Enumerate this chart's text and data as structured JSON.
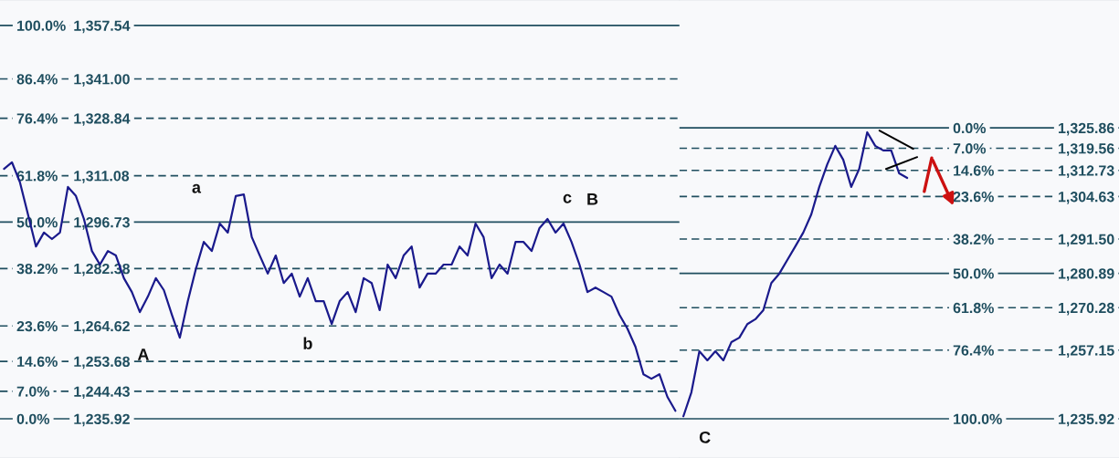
{
  "chart_data": [
    {
      "type": "line",
      "ylim": [
        1223.8,
        1365.4
      ],
      "y2lim": [
        -9.97,
        106.46
      ],
      "tick_labels": "y",
      "line_style": "solid",
      "categories": [
        null,
        null,
        null,
        null,
        null,
        null,
        null,
        null,
        null,
        null,
        null,
        null,
        null,
        null,
        null,
        null,
        null,
        null,
        null,
        null,
        null,
        null,
        null,
        null,
        null,
        null,
        null,
        null,
        null,
        null,
        null,
        null,
        null,
        null,
        null,
        null,
        null,
        null,
        null,
        null,
        null,
        null,
        null,
        null,
        null,
        null,
        null,
        null,
        null,
        null,
        null,
        null,
        null,
        null,
        null,
        null,
        null,
        null,
        null,
        null,
        null,
        null,
        null,
        null,
        null,
        null,
        null,
        null,
        null,
        null,
        null,
        null,
        null,
        null,
        null,
        null,
        null,
        null,
        null,
        null,
        null,
        null,
        null,
        null,
        null
      ],
      "series": [
        {
          "color": "#1a1a8c",
          "values": [
            1313.2,
            1315.2,
            1309.0,
            1299.1,
            1289.2,
            1293.5,
            1291.5,
            1293.5,
            1307.6,
            1304.8,
            1297.7,
            1287.8,
            1283.6,
            1287.8,
            1286.4,
            1279.4,
            1275.1,
            1268.9,
            1273.7,
            1279.4,
            1275.7,
            1268.1,
            1261.0,
            1272.3,
            1282.2,
            1290.6,
            1287.8,
            1296.3,
            1293.5,
            1304.8,
            1305.3,
            1292.1,
            1286.4,
            1280.8,
            1286.4,
            1277.9,
            1280.8,
            1273.7,
            1279.4,
            1272.3,
            1272.3,
            1265.2,
            1272.3,
            1275.1,
            1268.9,
            1279.4,
            1277.9,
            1269.5,
            1283.6,
            1279.4,
            1286.4,
            1289.2,
            1276.5,
            1280.8,
            1280.8,
            1283.6,
            1283.6,
            1289.2,
            1286.4,
            1296.3,
            1292.1,
            1279.4,
            1283.6,
            1280.8,
            1290.6,
            1290.6,
            1287.8,
            1294.9,
            1297.7,
            1293.5,
            1296.3,
            1290.6,
            1283.6,
            1275.1,
            1276.5,
            1275.1,
            1273.7,
            1268.1,
            1263.8,
            1258.2,
            1249.7,
            1248.3,
            1249.7,
            1242.7,
            1238.4
          ]
        }
      ],
      "y2ticks": [
        {
          "value": 100,
          "label": "100.0%"
        },
        {
          "value": 86.4,
          "label": "86.4%"
        },
        {
          "value": 76.4,
          "label": "76.4%"
        },
        {
          "value": 61.8,
          "label": "61.8%"
        },
        {
          "value": 50,
          "label": "50.0%"
        },
        {
          "value": 38.2,
          "label": "38.2%"
        },
        {
          "value": 23.6,
          "label": "23.6%"
        },
        {
          "value": 14.6,
          "label": "14.6%"
        },
        {
          "value": 7,
          "label": "7.0%"
        },
        {
          "value": 0,
          "label": "0.0%"
        }
      ],
      "yticks": [
        {
          "value": 1357.54,
          "label": "1,357.54"
        },
        {
          "value": 1341.0,
          "label": "1,341.00"
        },
        {
          "value": 1328.84,
          "label": "1,328.84"
        },
        {
          "value": 1311.08,
          "label": "1,311.08"
        },
        {
          "value": 1296.73,
          "label": "1,296.73"
        },
        {
          "value": 1282.38,
          "label": "1,282.38"
        },
        {
          "value": 1264.62,
          "label": "1,264.62"
        },
        {
          "value": 1253.68,
          "label": "1,253.68"
        },
        {
          "value": 1244.43,
          "label": "1,244.43"
        },
        {
          "value": 1235.92,
          "label": "1,235.92"
        }
      ],
      "ref_lines": [
        {
          "axis": "y",
          "value": 1357.54,
          "line_style": "solid"
        },
        {
          "axis": "y",
          "value": 1341.0,
          "line_style": "dashed"
        },
        {
          "axis": "y",
          "value": 1328.84,
          "line_style": "dashed"
        },
        {
          "axis": "y",
          "value": 1311.08,
          "line_style": "dashed"
        },
        {
          "axis": "y",
          "value": 1296.73,
          "line_style": "solid"
        },
        {
          "axis": "y",
          "value": 1282.38,
          "line_style": "dashed"
        },
        {
          "axis": "y",
          "value": 1264.62,
          "line_style": "dashed"
        },
        {
          "axis": "y",
          "value": 1253.68,
          "line_style": "dashed"
        },
        {
          "axis": "y",
          "value": 1244.43,
          "line_style": "dashed"
        },
        {
          "axis": "y",
          "value": 1235.92,
          "line_style": "solid"
        }
      ],
      "annotations": [
        "A",
        "a",
        "b",
        "c",
        "B"
      ]
    },
    {
      "type": "line",
      "ylim": [
        1223.8,
        1365.4
      ],
      "y2lim": [
        113.48,
        -43.96
      ],
      "tick_labels": "y",
      "line_style": "solid",
      "categories": [
        null,
        null,
        null,
        null,
        null,
        null,
        null,
        null,
        null,
        null,
        null,
        null,
        null,
        null,
        null,
        null,
        null,
        null,
        null,
        null,
        null,
        null,
        null,
        null,
        null,
        null,
        null,
        null,
        null,
        null,
        null,
        null,
        null,
        null,
        null,
        null,
        null,
        null,
        null,
        null,
        null,
        null,
        null,
        null,
        null,
        null,
        null,
        null,
        null,
        null,
        null,
        null,
        null,
        null,
        null
      ],
      "series": [
        {
          "color": "#1a1a8c",
          "values": [
            1236.7,
            1244.1,
            1256.8,
            1254.0,
            1256.8,
            1254.0,
            1259.6,
            1261.0,
            1265.2,
            1266.7,
            1269.5,
            1277.9,
            1280.8,
            1285.0,
            1289.2,
            1293.5,
            1299.1,
            1307.6,
            1314.6,
            1320.3,
            1316.0,
            1307.6,
            1313.2,
            1324.5,
            1320.3,
            1318.9,
            1318.9,
            1311.8,
            1310.4,
            null,
            null,
            null,
            null,
            null,
            null,
            null,
            null,
            null,
            null,
            null,
            null,
            null,
            null,
            null,
            null,
            null,
            null,
            null,
            null,
            null,
            null,
            null,
            null,
            null,
            null
          ]
        }
      ],
      "y2ticks": [
        {
          "value": 0,
          "label": "0.0%"
        },
        {
          "value": 7,
          "label": "7.0%"
        },
        {
          "value": 14.6,
          "label": "14.6%"
        },
        {
          "value": 23.6,
          "label": "23.6%"
        },
        {
          "value": 38.2,
          "label": "38.2%"
        },
        {
          "value": 50,
          "label": "50.0%"
        },
        {
          "value": 61.8,
          "label": "61.8%"
        },
        {
          "value": 76.4,
          "label": "76.4%"
        },
        {
          "value": 100,
          "label": "100.0%"
        }
      ],
      "yticks": [
        {
          "value": 1325.86,
          "label": "1,325.86"
        },
        {
          "value": 1319.56,
          "label": "1,319.56"
        },
        {
          "value": 1312.73,
          "label": "1,312.73"
        },
        {
          "value": 1304.63,
          "label": "1,304.63"
        },
        {
          "value": 1291.5,
          "label": "1,291.50"
        },
        {
          "value": 1280.89,
          "label": "1,280.89"
        },
        {
          "value": 1270.28,
          "label": "1,270.28"
        },
        {
          "value": 1257.15,
          "label": "1,257.15"
        },
        {
          "value": 1235.92,
          "label": "1,235.92"
        }
      ],
      "ref_lines": [
        {
          "axis": "y",
          "value": 1325.86,
          "line_style": "solid"
        },
        {
          "axis": "y",
          "value": 1319.56,
          "line_style": "dashed"
        },
        {
          "axis": "y",
          "value": 1312.73,
          "line_style": "dashed"
        },
        {
          "axis": "y",
          "value": 1304.63,
          "line_style": "dashed"
        },
        {
          "axis": "y",
          "value": 1291.5,
          "line_style": "dashed"
        },
        {
          "axis": "y",
          "value": 1280.89,
          "line_style": "solid"
        },
        {
          "axis": "y",
          "value": 1270.28,
          "line_style": "dashed"
        },
        {
          "axis": "y",
          "value": 1257.15,
          "line_style": "dashed"
        },
        {
          "axis": "y",
          "value": 1235.92,
          "line_style": "solid"
        }
      ],
      "annotations": [
        "C"
      ]
    }
  ]
}
